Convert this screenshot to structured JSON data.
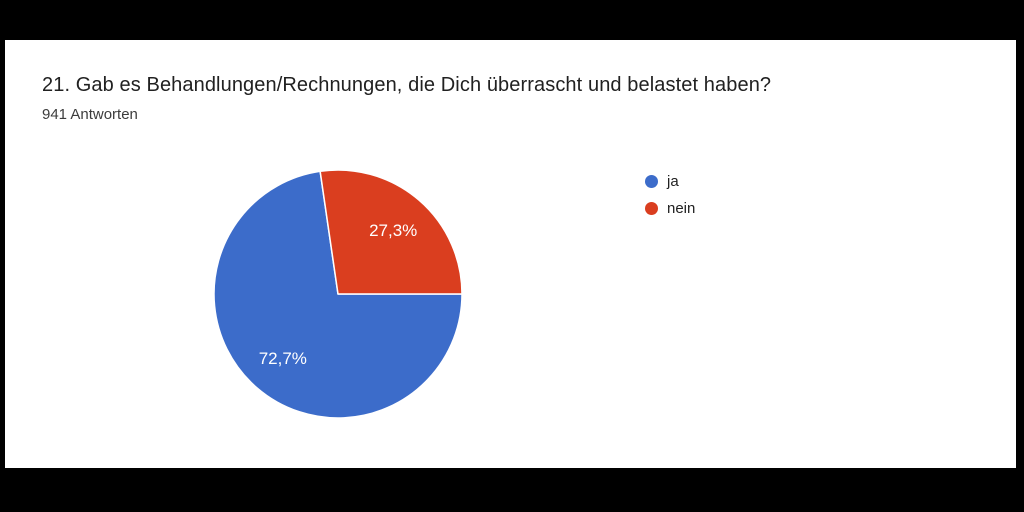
{
  "window": {
    "background_color": "#000000",
    "card_color": "#ffffff"
  },
  "header": {
    "title": "21. Gab es Behandlungen/Rechnungen, die Dich überrascht und belastet haben?",
    "responses_label": "941 Antworten"
  },
  "legend": {
    "position": "right",
    "items": [
      {
        "label": "ja",
        "color": "#3c6cca"
      },
      {
        "label": "nein",
        "color": "#da3e1f"
      }
    ]
  },
  "chart_data": {
    "type": "pie",
    "title": "21. Gab es Behandlungen/Rechnungen, die Dich überrascht und belastet haben?",
    "subtitle": "941 Antworten",
    "total_responses": 941,
    "slices": [
      {
        "label": "ja",
        "percent": 72.7,
        "display_label": "72,7%",
        "color": "#3c6cca"
      },
      {
        "label": "nein",
        "percent": 27.3,
        "display_label": "27,3%",
        "color": "#da3e1f"
      }
    ],
    "start_angle_deg": 90,
    "direction": "clockwise",
    "slice_border_color": "#ffffff",
    "slice_label_color": "#ffffff",
    "legend_position": "right"
  }
}
